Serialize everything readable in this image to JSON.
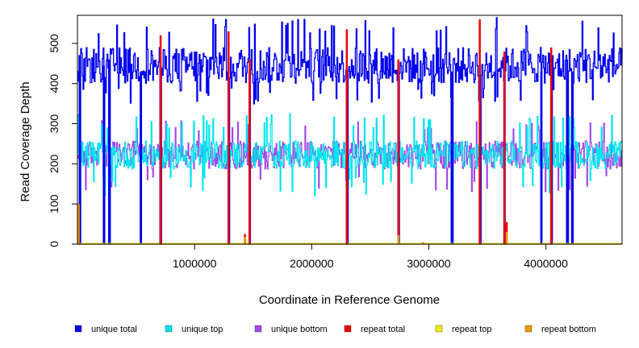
{
  "chart_data": {
    "type": "line",
    "title": "",
    "xlabel": "Coordinate in Reference Genome",
    "ylabel": "Read Coverage Depth",
    "xlim": [
      0,
      4650000
    ],
    "ylim": [
      0,
      570
    ],
    "x_ticks": [
      1000000,
      2000000,
      3000000,
      4000000
    ],
    "x_tick_labels": [
      "1000000",
      "2000000",
      "3000000",
      "4000000"
    ],
    "y_ticks": [
      0,
      100,
      200,
      300,
      400,
      500
    ],
    "y_tick_labels": [
      "0",
      "100",
      "200",
      "300",
      "400",
      "500"
    ],
    "grid": false,
    "legend_position": "bottom",
    "legend": [
      {
        "label": "unique total",
        "color": "#0000ee"
      },
      {
        "label": "unique top",
        "color": "#00e5ee"
      },
      {
        "label": "unique bottom",
        "color": "#a44ae6"
      },
      {
        "label": "repeat total",
        "color": "#ee0000"
      },
      {
        "label": "repeat top",
        "color": "#eeee00"
      },
      {
        "label": "repeat bottom",
        "color": "#ee9a00"
      }
    ],
    "series": [
      {
        "name": "unique total",
        "color": "#0000ee",
        "baseline_mean": 445,
        "noise_range": [
          345,
          565
        ]
      },
      {
        "name": "unique top",
        "color": "#00e5ee",
        "baseline_mean": 222,
        "noise_range": [
          120,
          325
        ]
      },
      {
        "name": "unique bottom",
        "color": "#a44ae6",
        "baseline_mean": 222,
        "noise_range": [
          130,
          310
        ]
      },
      {
        "name": "repeat total",
        "color": "#ee0000",
        "baseline_mean": 0
      },
      {
        "name": "repeat top",
        "color": "#eeee00",
        "baseline_mean": 0
      },
      {
        "name": "repeat bottom",
        "color": "#ee9a00",
        "baseline_mean": 0
      }
    ],
    "coverage_dropouts": [
      20000,
      225000,
      270000,
      540000,
      710000,
      1290000,
      1470000,
      2300000,
      2740000,
      3195000,
      3435000,
      3645000,
      3960000,
      4045000,
      4180000,
      4225000
    ],
    "repeat_total_spikes": [
      {
        "x": 10000,
        "y": 100
      },
      {
        "x": 710000,
        "y": 520
      },
      {
        "x": 1290000,
        "y": 530
      },
      {
        "x": 1430000,
        "y": 25
      },
      {
        "x": 1470000,
        "y": 460
      },
      {
        "x": 2300000,
        "y": 535
      },
      {
        "x": 2740000,
        "y": 460
      },
      {
        "x": 3435000,
        "y": 560
      },
      {
        "x": 3645000,
        "y": 480
      },
      {
        "x": 3665000,
        "y": 55
      },
      {
        "x": 4045000,
        "y": 490
      }
    ],
    "repeat_bottom_spikes": [
      {
        "x": 10000,
        "y": 100
      },
      {
        "x": 1430000,
        "y": 18
      },
      {
        "x": 2740000,
        "y": 22
      },
      {
        "x": 2950000,
        "y": 5
      },
      {
        "x": 3665000,
        "y": 30
      }
    ]
  }
}
